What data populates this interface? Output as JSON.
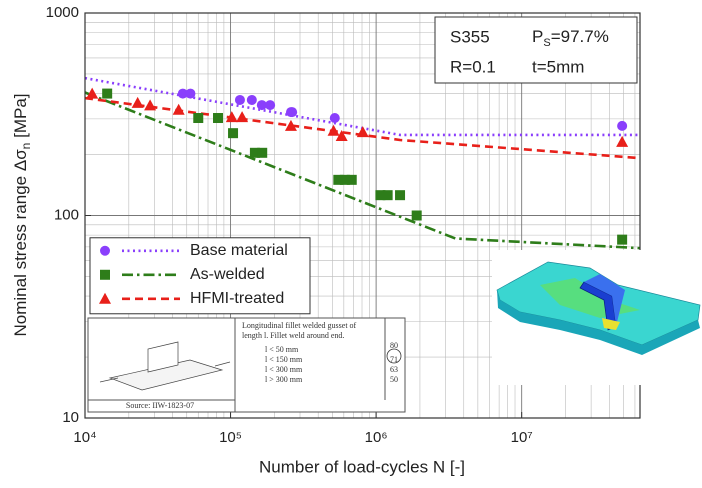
{
  "chart_data": {
    "type": "scatter",
    "xlabel": "Number of load-cycles N [-]",
    "ylabel": "Nominal stress range Δσ",
    "ylabel_sub": "n",
    "ylabel_unit": " [MPa]",
    "xscale": "log",
    "yscale": "log",
    "xlim": [
      10000,
      65000000
    ],
    "ylim": [
      10,
      1000
    ],
    "xticks": [
      {
        "value": 10000,
        "label": "10⁴"
      },
      {
        "value": 100000,
        "label": "10⁵"
      },
      {
        "value": 1000000,
        "label": "10⁶"
      },
      {
        "value": 10000000,
        "label": "10⁷"
      }
    ],
    "yticks": [
      10,
      100,
      1000
    ],
    "grid": true,
    "minor_grid": true,
    "legend": "center left",
    "annotation": {
      "line1": [
        "S355",
        "P"
      ],
      "sub": "S",
      "rest": "=97.7%",
      "line2": [
        "R=0.1",
        "t=5mm"
      ]
    },
    "series": [
      {
        "name": "Base material",
        "color": "#8a3ffc",
        "marker": "circle",
        "x": [
          47000,
          53000,
          116000,
          140000,
          164000,
          187000,
          260000,
          265000,
          520000,
          49000000
        ],
        "values": [
          400,
          400,
          372,
          372,
          351,
          351,
          324,
          324,
          303,
          277
        ],
        "line": {
          "style": "dotted",
          "x": [
            10000,
            1460000,
            65000000
          ],
          "values": [
            477,
            250,
            250
          ]
        }
      },
      {
        "name": "As-welded",
        "color": "#2e7d1a",
        "marker": "square",
        "x": [
          14200,
          60000,
          82000,
          104000,
          147000,
          165000,
          550000,
          610000,
          680000,
          1070000,
          1200000,
          1460000,
          1900000,
          49000000
        ],
        "values": [
          400,
          303,
          303,
          255,
          204,
          204,
          150,
          150,
          150,
          126,
          126,
          126,
          100,
          76
        ],
        "line": {
          "style": "dashdot",
          "x": [
            10000,
            3500000,
            65000000
          ],
          "values": [
            405,
            77,
            69
          ]
        }
      },
      {
        "name": "HFMI-treated",
        "color": "#e8201a",
        "marker": "triangle",
        "x": [
          11200,
          23000,
          28000,
          44000,
          102000,
          120000,
          260000,
          510000,
          580000,
          810000,
          49000000
        ],
        "values": [
          400,
          360,
          350,
          333,
          306,
          306,
          277,
          262,
          247,
          258,
          231
        ],
        "line": {
          "style": "dashed",
          "x": [
            10000,
            1460000,
            65000000
          ],
          "values": [
            380,
            236,
            192
          ]
        }
      }
    ]
  },
  "inset": {
    "description": [
      "Longitudinal fillet welded gusset of",
      "length l. Fillet weld around end."
    ],
    "rows": [
      [
        "l < 50 mm",
        "80"
      ],
      [
        "l < 150 mm",
        "71"
      ],
      [
        "l < 300 mm",
        "63"
      ],
      [
        "l > 300 mm",
        "50"
      ]
    ],
    "source": "Source: IIW-1823-07"
  }
}
